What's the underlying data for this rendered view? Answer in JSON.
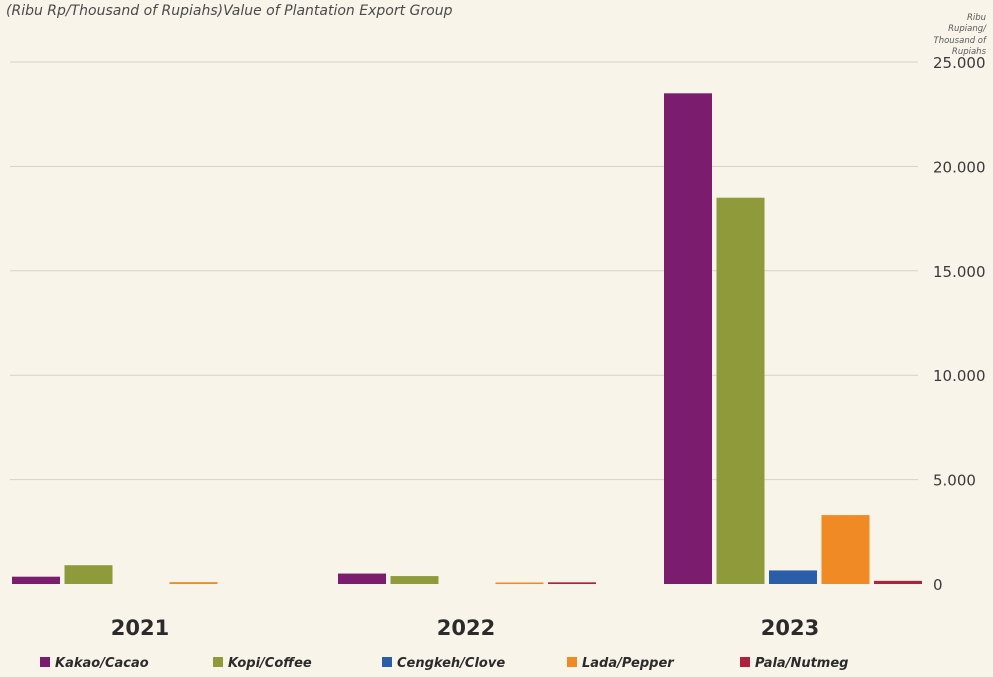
{
  "caption": "(Ribu Rp/Thousand of Rupiahs)Value of Plantation Export Group",
  "chart_data": {
    "type": "bar",
    "categories": [
      "2021",
      "2022",
      "2023"
    ],
    "series": [
      {
        "name": "Kakao/Cacao",
        "color": "#7b1c6e",
        "values": [
          350,
          500,
          23500
        ]
      },
      {
        "name": "Kopi/Coffee",
        "color": "#8f9a3a",
        "values": [
          900,
          380,
          18500
        ]
      },
      {
        "name": "Cengkeh/Clove",
        "color": "#2a5ea8",
        "values": [
          0,
          0,
          650
        ]
      },
      {
        "name": "Lada/Pepper",
        "color": "#f08a24",
        "values": [
          90,
          70,
          3300
        ]
      },
      {
        "name": "Pala/Nutmeg",
        "color": "#b0223c",
        "values": [
          0,
          80,
          150
        ]
      }
    ],
    "ylim": [
      0,
      25000
    ],
    "yticks": [
      "0",
      "5.000",
      "10.000",
      "15.000",
      "20.000",
      "25.000"
    ],
    "yunit": [
      "Ribu",
      "Rupiang/",
      "Thousand of",
      "Rupiahs"
    ],
    "grid": true,
    "legend_position": "bottom"
  }
}
